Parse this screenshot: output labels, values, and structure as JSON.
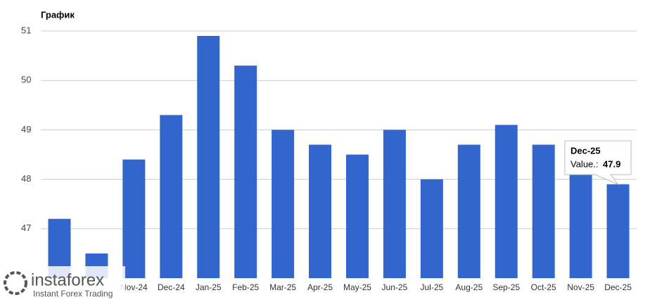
{
  "chart_data": {
    "type": "bar",
    "title": "График",
    "categories": [
      null,
      null,
      "Nov-24",
      "Dec-24",
      "Jan-25",
      "Feb-25",
      "Mar-25",
      "Apr-25",
      "May-25",
      "Jun-25",
      "Jul-25",
      "Aug-25",
      "Sep-25",
      "Oct-25",
      "Nov-25",
      "Dec-25"
    ],
    "values": [
      47.2,
      46.5,
      48.4,
      49.3,
      50.9,
      50.3,
      49.0,
      48.7,
      48.5,
      49.0,
      48.0,
      48.7,
      49.1,
      48.7,
      48.1,
      47.9
    ],
    "color": "#3366cc",
    "ylim": [
      46,
      51
    ],
    "yticks": [
      47,
      48,
      49,
      50,
      51
    ],
    "grid": true,
    "tooltip_label": "Value.:"
  },
  "watermark": {
    "brand": "instaforex",
    "tagline": "Instant Forex Trading"
  }
}
